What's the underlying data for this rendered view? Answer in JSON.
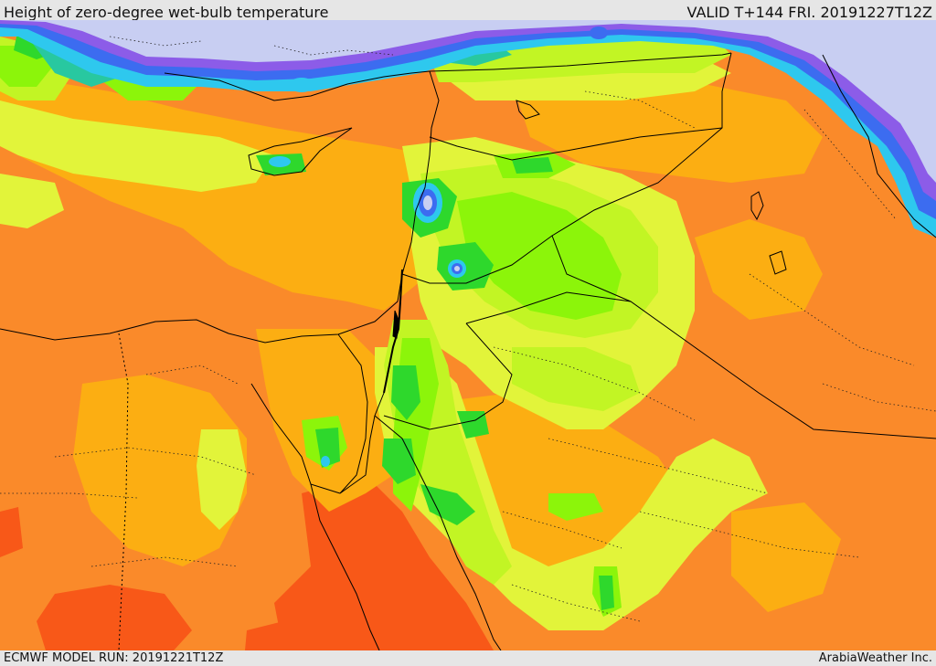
{
  "header": {
    "title": "Height of zero-degree wet-bulb temperature",
    "valid": "VALID T+144 FRI. 20191227T12Z"
  },
  "footer": {
    "model_run": "ECMWF MODEL RUN: 20191221T12Z",
    "credit": "ArabiaWeather Inc."
  },
  "colors": {
    "deep_orange": "#f85818",
    "orange": "#fa8a2a",
    "light_orange": "#fcae12",
    "yellow": "#e2f43a",
    "yellow_green": "#c2f524",
    "green": "#8cf50a",
    "bright_green": "#2ed82c",
    "teal": "#28c8a0",
    "cyan": "#2ec8ee",
    "blue": "#3c6cf0",
    "purple": "#8c5ce8",
    "lavender": "#c8cef2",
    "border": "#000000"
  }
}
